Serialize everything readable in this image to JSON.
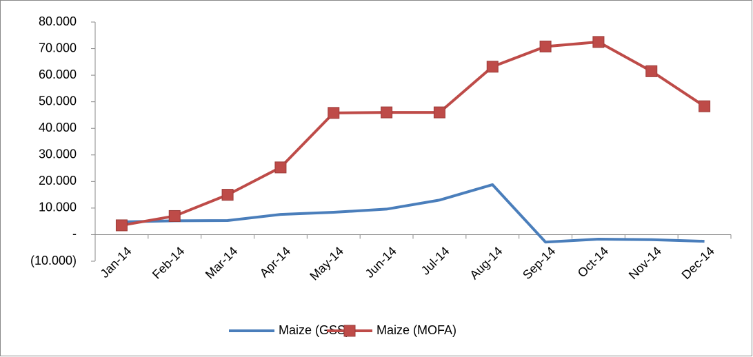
{
  "chart_data": {
    "type": "line",
    "categories": [
      "Jan-14",
      "Feb-14",
      "Mar-14",
      "Apr-14",
      "May-14",
      "Jun-14",
      "Jul-14",
      "Aug-14",
      "Sep-14",
      "Oct-14",
      "Nov-14",
      "Dec-14"
    ],
    "series": [
      {
        "name": "Maize (GSS)",
        "color": "#4a7ebb",
        "marker": false,
        "values": [
          4.8,
          5.2,
          5.3,
          7.6,
          8.4,
          9.6,
          13.0,
          18.8,
          -2.8,
          -1.7,
          -1.9,
          -2.5
        ]
      },
      {
        "name": "Maize (MOFA)",
        "color": "#be4b48",
        "marker": true,
        "values": [
          3.5,
          7.0,
          15.0,
          25.3,
          45.8,
          46.0,
          46.0,
          63.2,
          70.8,
          72.5,
          61.5,
          48.3
        ]
      }
    ],
    "ylim": [
      -10,
      80
    ],
    "yticks": [
      {
        "value": -10,
        "label": "(10.000)"
      },
      {
        "value": 0,
        "label": "-"
      },
      {
        "value": 10,
        "label": "10.000"
      },
      {
        "value": 20,
        "label": "20.000"
      },
      {
        "value": 30,
        "label": "30.000"
      },
      {
        "value": 40,
        "label": "40.000"
      },
      {
        "value": 50,
        "label": "50.000"
      },
      {
        "value": 60,
        "label": "60.000"
      },
      {
        "value": 70,
        "label": "70.000"
      },
      {
        "value": 80,
        "label": "80.000"
      }
    ],
    "grid": false,
    "legend": "bottom"
  }
}
